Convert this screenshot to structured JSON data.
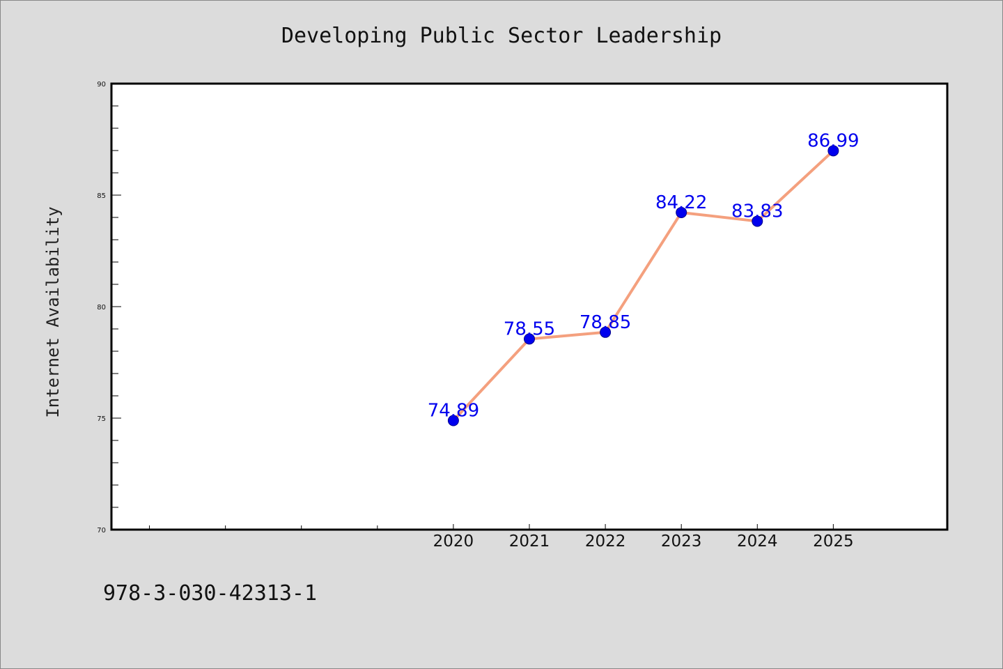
{
  "chart_data": {
    "type": "line",
    "title": "Developing Public Sector Leadership",
    "xlabel": "",
    "ylabel": "Internet Availability",
    "x": [
      2020,
      2021,
      2022,
      2023,
      2024,
      2025
    ],
    "x_tick_labels": [
      "2020",
      "2021",
      "2022",
      "2023",
      "2024",
      "2025"
    ],
    "x_range": [
      2015.5,
      2026.5
    ],
    "x_minor_ticks": [
      2016,
      2017,
      2018,
      2019
    ],
    "ylim": [
      70,
      90
    ],
    "y_major_ticks": [
      70,
      75,
      80,
      85,
      90
    ],
    "y_tick_labels": [
      "70",
      "75",
      "80",
      "85",
      "90"
    ],
    "y_minor_step": 1,
    "grid": false,
    "series": [
      {
        "values": [
          74.89,
          78.55,
          78.85,
          84.22,
          83.83,
          86.99
        ],
        "data_labels": [
          "74.89",
          "78.55",
          "78.85",
          "84.22",
          "83.83",
          "86.99"
        ]
      }
    ]
  },
  "footer": {
    "isbn": "978-3-030-42313-1"
  },
  "colors": {
    "background": "#dcdcdc",
    "plot_background": "#ffffff",
    "line": "#f4a07e",
    "marker": "#0000ee",
    "data_label": "#0000ee",
    "axis": "#000000"
  }
}
